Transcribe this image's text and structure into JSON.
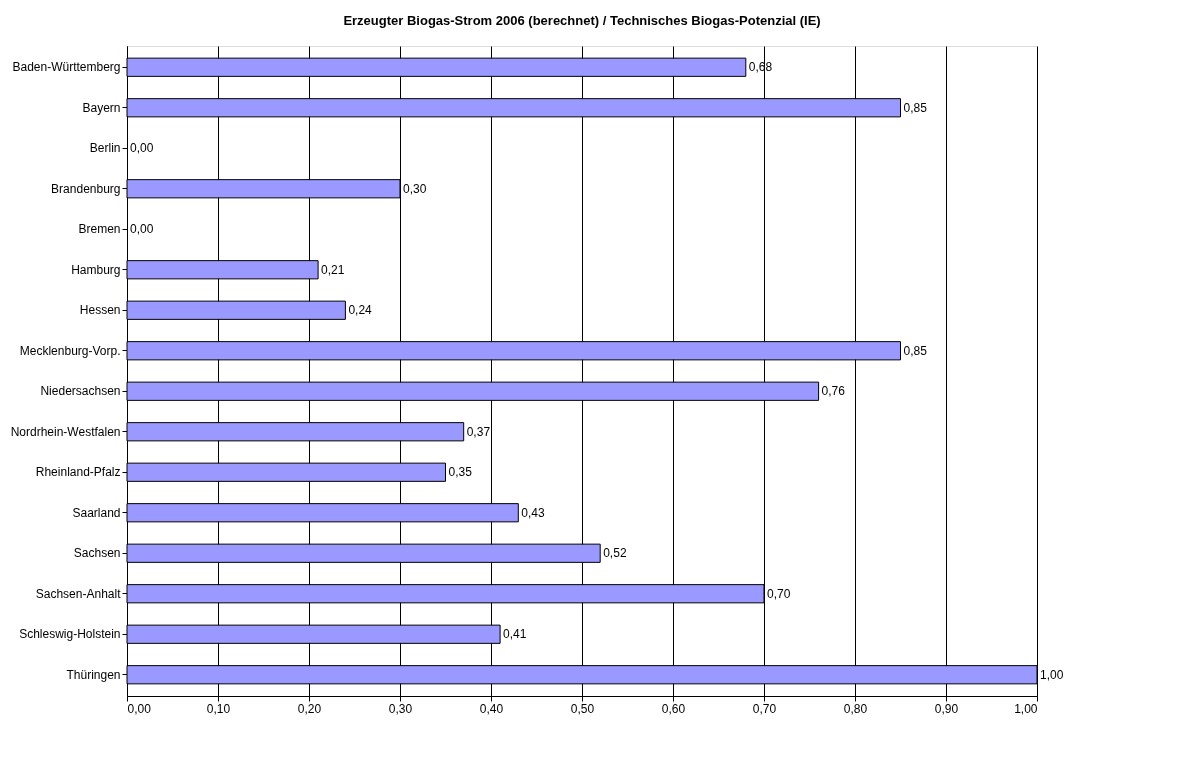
{
  "chart_data": {
    "type": "bar",
    "orientation": "horizontal",
    "title": "Erzeugter Biogas-Strom 2006 (berechnet) / Technisches Biogas-Potenzial (IE)",
    "categories": [
      "Baden-Württemberg",
      "Bayern",
      "Berlin",
      "Brandenburg",
      "Bremen",
      "Hamburg",
      "Hessen",
      "Mecklenburg-Vorp.",
      "Niedersachsen",
      "Nordrhein-Westfalen",
      "Rheinland-Pfalz",
      "Saarland",
      "Sachsen",
      "Sachsen-Anhalt",
      "Schleswig-Holstein",
      "Thüringen"
    ],
    "values": [
      0.68,
      0.85,
      0.0,
      0.3,
      0.0,
      0.21,
      0.24,
      0.85,
      0.76,
      0.37,
      0.35,
      0.43,
      0.52,
      0.7,
      0.41,
      1.0
    ],
    "value_labels": [
      "0,68",
      "0,85",
      "0,00",
      "0,30",
      "0,00",
      "0,21",
      "0,24",
      "0,85",
      "0,76",
      "0,37",
      "0,35",
      "0,43",
      "0,52",
      "0,70",
      "0,41",
      "1,00"
    ],
    "color": "#9999ff",
    "xlim": [
      0,
      1
    ],
    "xticks": [
      {
        "value": 0,
        "label": "0,00"
      },
      {
        "value": 0.1,
        "label": "0,10"
      },
      {
        "value": 0.2,
        "label": "0,20"
      },
      {
        "value": 0.3,
        "label": "0,30"
      },
      {
        "value": 0.4,
        "label": "0,40"
      },
      {
        "value": 0.5,
        "label": "0,50"
      },
      {
        "value": 0.6,
        "label": "0,60"
      },
      {
        "value": 0.7,
        "label": "0,70"
      },
      {
        "value": 0.8,
        "label": "0,80"
      },
      {
        "value": 0.9,
        "label": "0,90"
      },
      {
        "value": 1,
        "label": "1,00"
      }
    ],
    "grid": "x"
  }
}
